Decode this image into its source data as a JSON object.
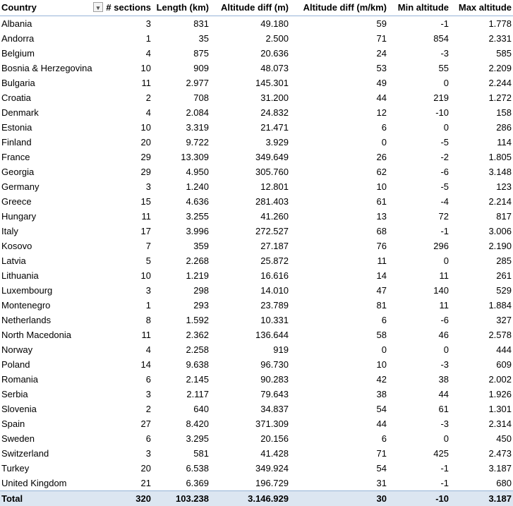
{
  "headers": [
    "Country",
    "# sections",
    "Length (km)",
    "Altitude diff (m)",
    "Altitude diff (m/km)",
    "Min altitude",
    "Max altitude"
  ],
  "filter_icon": "sort-filter-dropdown-icon",
  "rows": [
    [
      "Albania",
      "3",
      "831",
      "49.180",
      "59",
      "-1",
      "1.778"
    ],
    [
      "Andorra",
      "1",
      "35",
      "2.500",
      "71",
      "854",
      "2.331"
    ],
    [
      "Belgium",
      "4",
      "875",
      "20.636",
      "24",
      "-3",
      "585"
    ],
    [
      "Bosnia & Herzegovina",
      "10",
      "909",
      "48.073",
      "53",
      "55",
      "2.209"
    ],
    [
      "Bulgaria",
      "11",
      "2.977",
      "145.301",
      "49",
      "0",
      "2.244"
    ],
    [
      "Croatia",
      "2",
      "708",
      "31.200",
      "44",
      "219",
      "1.272"
    ],
    [
      "Denmark",
      "4",
      "2.084",
      "24.832",
      "12",
      "-10",
      "158"
    ],
    [
      "Estonia",
      "10",
      "3.319",
      "21.471",
      "6",
      "0",
      "286"
    ],
    [
      "Finland",
      "20",
      "9.722",
      "3.929",
      "0",
      "-5",
      "114"
    ],
    [
      "France",
      "29",
      "13.309",
      "349.649",
      "26",
      "-2",
      "1.805"
    ],
    [
      "Georgia",
      "29",
      "4.950",
      "305.760",
      "62",
      "-6",
      "3.148"
    ],
    [
      "Germany",
      "3",
      "1.240",
      "12.801",
      "10",
      "-5",
      "123"
    ],
    [
      "Greece",
      "15",
      "4.636",
      "281.403",
      "61",
      "-4",
      "2.214"
    ],
    [
      "Hungary",
      "11",
      "3.255",
      "41.260",
      "13",
      "72",
      "817"
    ],
    [
      "Italy",
      "17",
      "3.996",
      "272.527",
      "68",
      "-1",
      "3.006"
    ],
    [
      "Kosovo",
      "7",
      "359",
      "27.187",
      "76",
      "296",
      "2.190"
    ],
    [
      "Latvia",
      "5",
      "2.268",
      "25.872",
      "11",
      "0",
      "285"
    ],
    [
      "Lithuania",
      "10",
      "1.219",
      "16.616",
      "14",
      "11",
      "261"
    ],
    [
      "Luxembourg",
      "3",
      "298",
      "14.010",
      "47",
      "140",
      "529"
    ],
    [
      "Montenegro",
      "1",
      "293",
      "23.789",
      "81",
      "11",
      "1.884"
    ],
    [
      "Netherlands",
      "8",
      "1.592",
      "10.331",
      "6",
      "-6",
      "327"
    ],
    [
      "North Macedonia",
      "11",
      "2.362",
      "136.644",
      "58",
      "46",
      "2.578"
    ],
    [
      "Norway",
      "4",
      "2.258",
      "919",
      "0",
      "0",
      "444"
    ],
    [
      "Poland",
      "14",
      "9.638",
      "96.730",
      "10",
      "-3",
      "609"
    ],
    [
      "Romania",
      "6",
      "2.145",
      "90.283",
      "42",
      "38",
      "2.002"
    ],
    [
      "Serbia",
      "3",
      "2.117",
      "79.643",
      "38",
      "44",
      "1.926"
    ],
    [
      "Slovenia",
      "2",
      "640",
      "34.837",
      "54",
      "61",
      "1.301"
    ],
    [
      "Spain",
      "27",
      "8.420",
      "371.309",
      "44",
      "-3",
      "2.314"
    ],
    [
      "Sweden",
      "6",
      "3.295",
      "20.156",
      "6",
      "0",
      "450"
    ],
    [
      "Switzerland",
      "3",
      "581",
      "41.428",
      "71",
      "425",
      "2.473"
    ],
    [
      "Turkey",
      "20",
      "6.538",
      "349.924",
      "54",
      "-1",
      "3.187"
    ],
    [
      "United Kingdom",
      "21",
      "6.369",
      "196.729",
      "31",
      "-1",
      "680"
    ]
  ],
  "total": [
    "Total",
    "320",
    "103.238",
    "3.146.929",
    "30",
    "-10",
    "3.187"
  ],
  "colors": {
    "total_bg": "#dce6f1",
    "border": "#95b3d7"
  }
}
